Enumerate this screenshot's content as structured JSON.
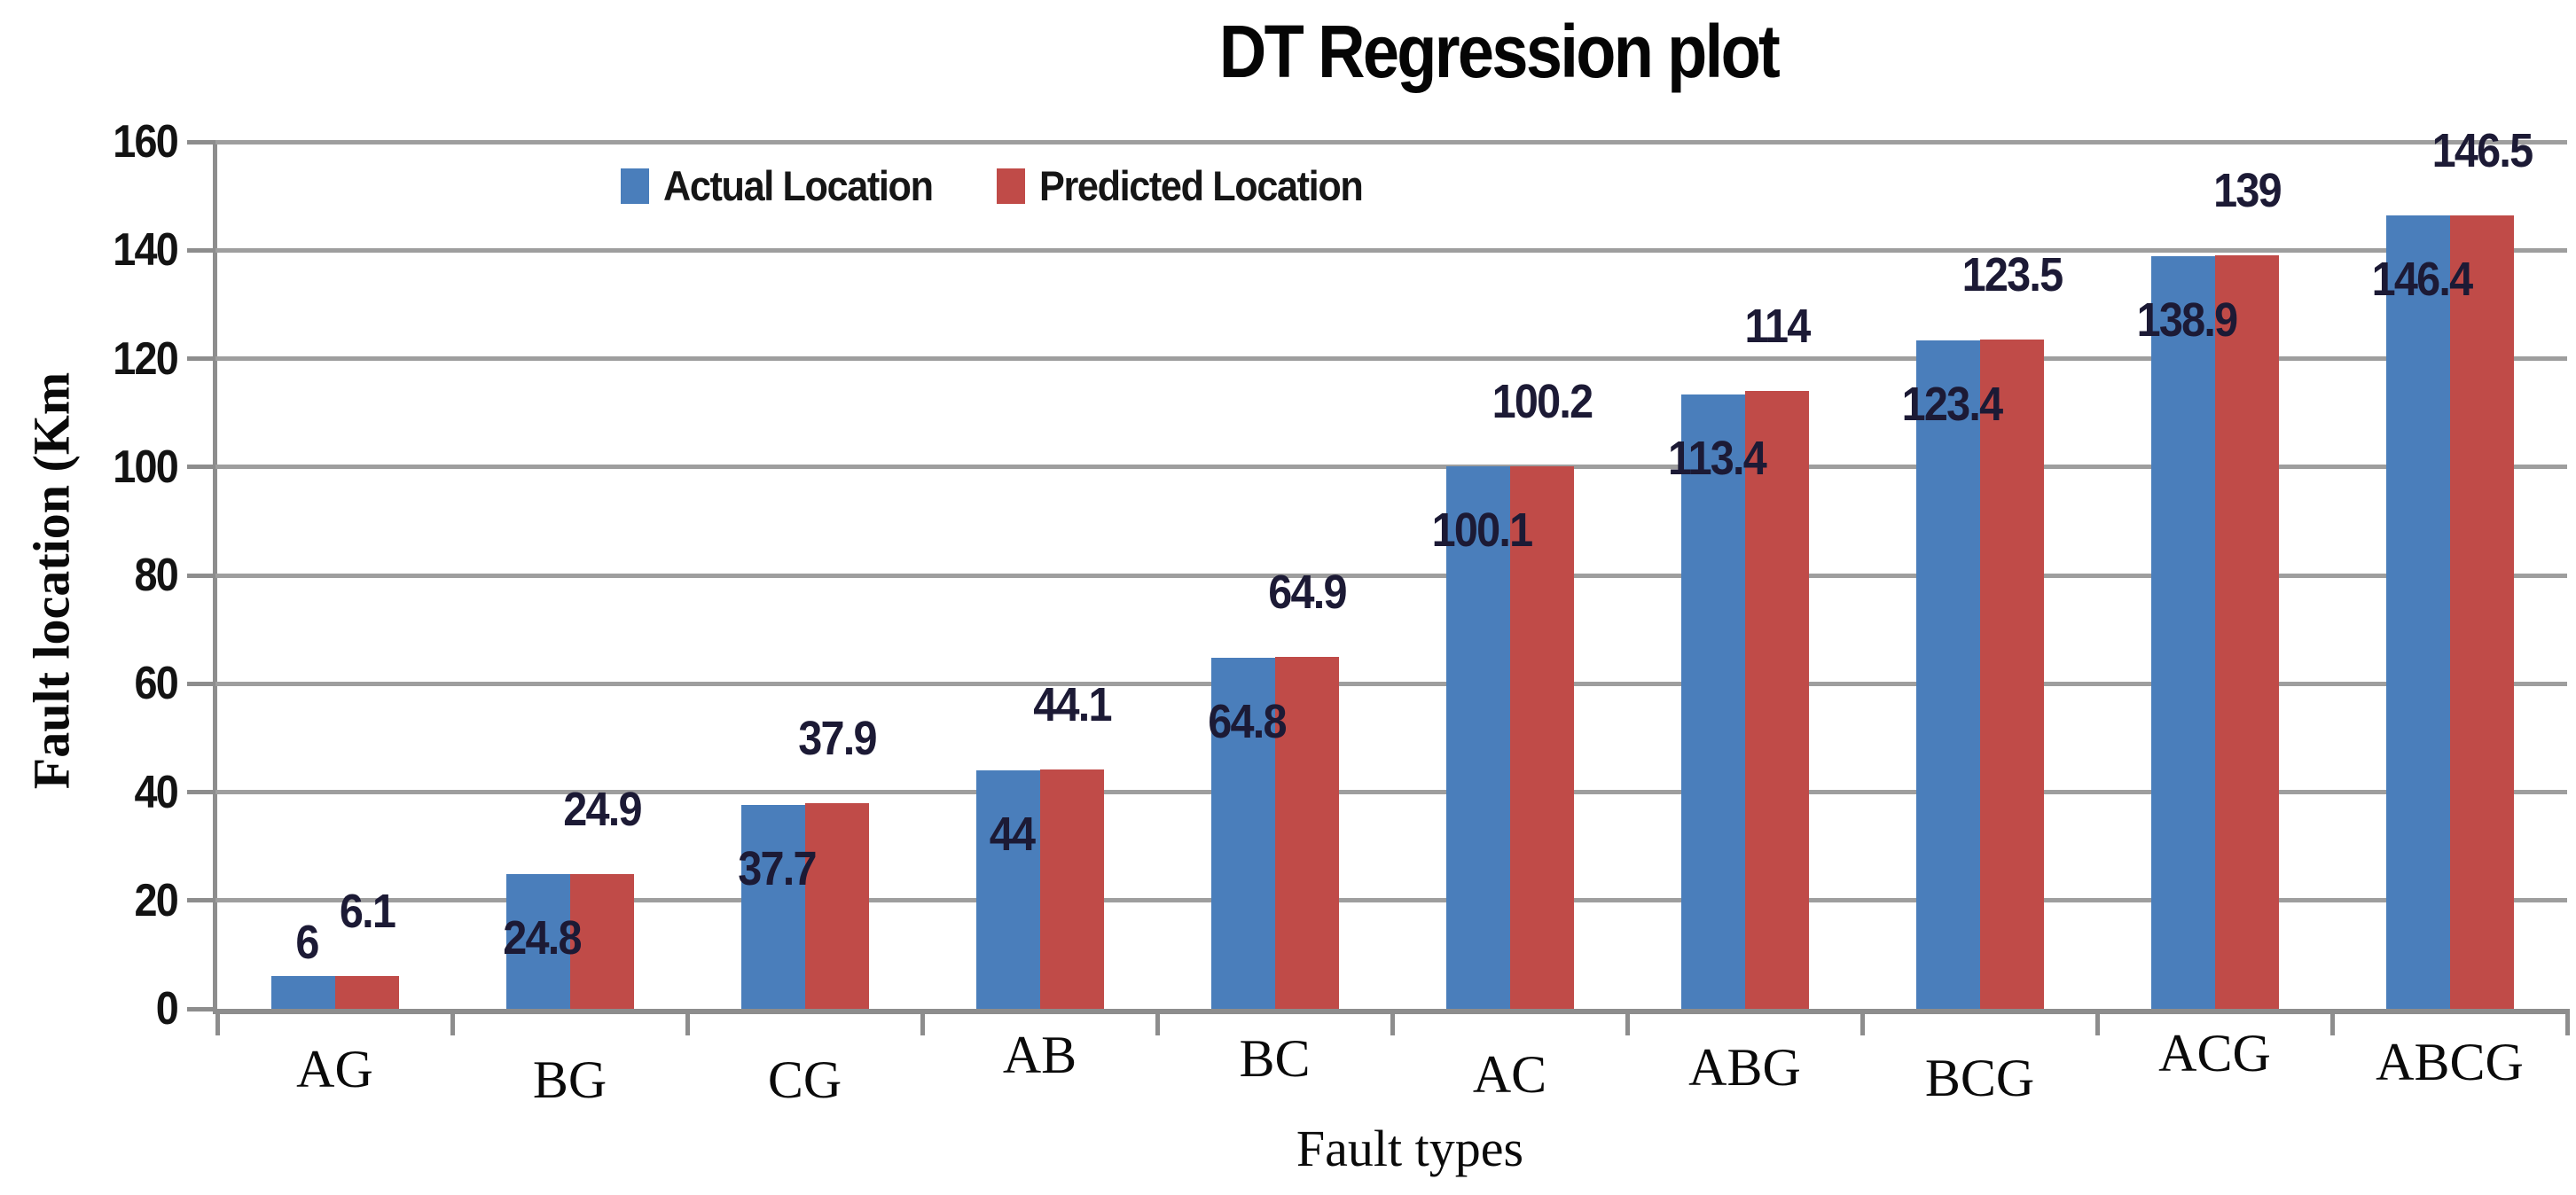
{
  "title": "DT Regression plot",
  "legend": [
    {
      "label": "Actual Location",
      "color": "#4a7ebb"
    },
    {
      "label": "Predicted Location",
      "color": "#c04b48"
    }
  ],
  "colors": {
    "actual_bar": "#4a7ebb",
    "predicted_bar": "#c04b48",
    "gridline": "#9e9e9e",
    "axis": "#8d8d8d",
    "data_label_text": "#1c1a35"
  },
  "chart_data": {
    "type": "bar",
    "title": "DT Regression plot",
    "xlabel": "Fault types",
    "ylabel": "Fault location (Km",
    "categories": [
      "AG",
      "BG",
      "CG",
      "AB",
      "BC",
      "AC",
      "ABG",
      "BCG",
      "ACG",
      "ABCG"
    ],
    "series": [
      {
        "name": "Actual Location",
        "color": "#4a7ebb",
        "values": [
          6,
          24.8,
          37.7,
          44,
          64.8,
          100.1,
          113.4,
          123.4,
          138.9,
          146.4
        ],
        "labels": [
          "6",
          "24.8",
          "37.7",
          "44",
          "64.8",
          "100.1",
          "113.4",
          "123.4",
          "138.9",
          "146.4"
        ]
      },
      {
        "name": "Predicted Location",
        "color": "#c04b48",
        "values": [
          6.1,
          24.9,
          37.9,
          44.1,
          64.9,
          100.2,
          114,
          123.5,
          139,
          146.5
        ],
        "labels": [
          "6.1",
          "24.9",
          "37.9",
          "44.1",
          "64.9",
          "100.2",
          "114",
          "123.5",
          "139",
          "146.5"
        ]
      }
    ],
    "ylim": [
      0,
      160
    ],
    "ytick_interval": 20,
    "yticks": [
      "0",
      "20",
      "40",
      "60",
      "80",
      "100",
      "120",
      "140",
      "160"
    ],
    "grid": "horizontal",
    "legend_position": "top-inside"
  }
}
